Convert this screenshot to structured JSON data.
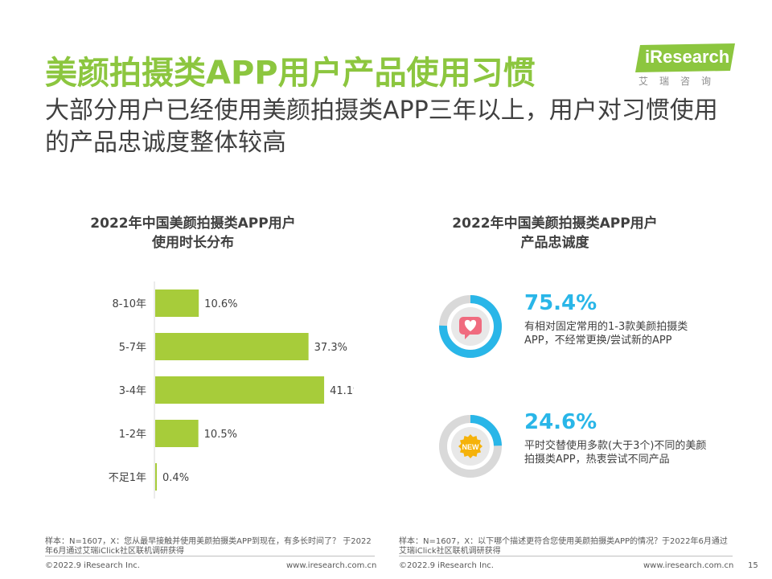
{
  "header": {
    "title": "美颜拍摄类APP用户产品使用习惯",
    "subtitle": "大部分用户已经使用美颜拍摄类APP三年以上，用户对习惯使用的产品忠诚度整体较高",
    "logo_text": "iResearch",
    "logo_cn": "艾瑞咨询"
  },
  "left": {
    "title": "2022年中国美颜拍摄类APP用户\n使用时长分布",
    "note": "样本：N=1607，X：您从最早接触并使用美颜拍摄类APP到现在，有多长时间了？ 于2022年6月通过艾瑞iClick社区联机调研获得"
  },
  "right": {
    "title": "2022年中国美颜拍摄类APP用户\n产品忠诚度",
    "stat1": {
      "value": "75.4%",
      "desc": "有相对固定常用的1-3款美颜拍摄类APP，不经常更换/尝试新的APP"
    },
    "stat2": {
      "value": "24.6%",
      "desc": "平时交替使用多款(大于3个)不同的美颜拍摄类APP，热衷尝试不同产品"
    },
    "badge_text": "NEW",
    "note": "样本：N=1607，X：以下哪个描述更符合您使用美颜拍摄类APP的情况？于2022年6月通过艾瑞iClick社区联机调研获得"
  },
  "footer": {
    "copyright": "©2022.9 iResearch Inc.",
    "site": "www.iresearch.com.cn",
    "page": "15"
  },
  "colors": {
    "title_green": "#8cc63f",
    "bar_green": "#a7cc3a",
    "ring_blue": "#29b6e8",
    "ring_gray": "#d9d9d9",
    "heart_pink": "#f06b7f",
    "badge_orange": "#f5b20a"
  },
  "chart_data": [
    {
      "type": "bar",
      "orientation": "horizontal",
      "title": "2022年中国美颜拍摄类APP用户使用时长分布",
      "categories": [
        "8-10年",
        "5-7年",
        "3-4年",
        "1-2年",
        "不足1年"
      ],
      "values": [
        10.6,
        37.3,
        41.1,
        10.5,
        0.4
      ],
      "labels": [
        "10.6%",
        "37.3%",
        "41.1%",
        "10.5%",
        "0.4%"
      ],
      "unit": "%",
      "xlim": [
        0,
        45
      ],
      "grid": false
    },
    {
      "type": "pie",
      "title": "2022年中国美颜拍摄类APP用户产品忠诚度",
      "categories": [
        "有相对固定常用的1-3款美颜拍摄类APP，不经常更换/尝试新的APP",
        "平时交替使用多款(大于3个)不同的美颜拍摄类APP，热衷尝试不同产品"
      ],
      "values": [
        75.4,
        24.6
      ],
      "unit": "%"
    }
  ]
}
